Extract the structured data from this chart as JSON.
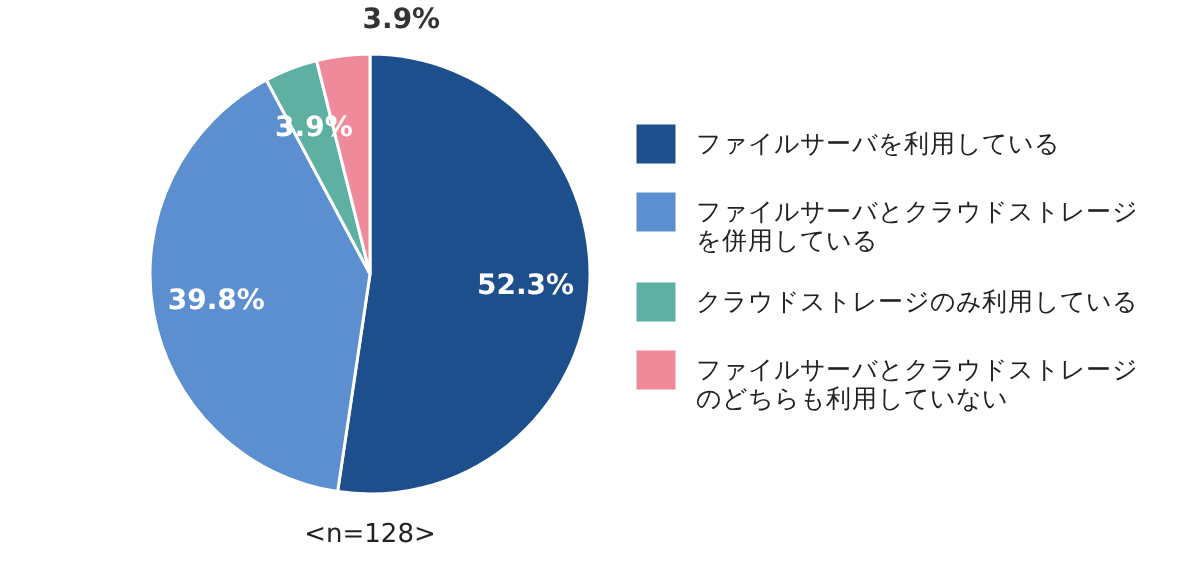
{
  "chart_data": {
    "type": "pie",
    "categories": [
      "ファイルサーバを利用している",
      "ファイルサーバとクラウドストレージを併用している",
      "クラウドストレージのみ利用している",
      "ファイルサーバとクラウドストレージのどちらも利用していない"
    ],
    "values": [
      52.3,
      39.8,
      3.9,
      3.9
    ],
    "value_labels": [
      "52.3%",
      "39.8%",
      "3.9%",
      "3.9%"
    ],
    "colors": [
      "#1d4f8c",
      "#5b8fd0",
      "#5eb0a2",
      "#ef8a9b"
    ],
    "legend": "right",
    "annotations": [
      "<n=128>"
    ]
  }
}
